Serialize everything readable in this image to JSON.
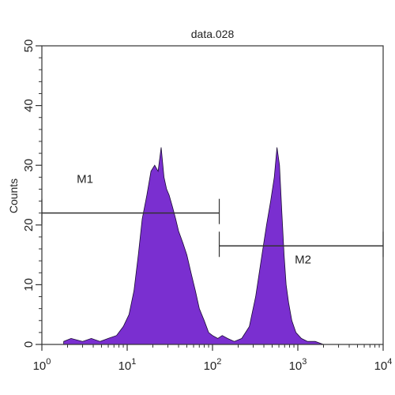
{
  "chart_data": {
    "type": "area",
    "title": "data.028",
    "xlabel": "",
    "ylabel": "Counts",
    "x_scale": "log",
    "xlim": [
      1,
      10000
    ],
    "ylim": [
      0,
      50
    ],
    "x_ticks": [
      {
        "value": 1,
        "base": "10",
        "exp": "0"
      },
      {
        "value": 10,
        "base": "10",
        "exp": "1"
      },
      {
        "value": 100,
        "base": "10",
        "exp": "2"
      },
      {
        "value": 1000,
        "base": "10",
        "exp": "3"
      },
      {
        "value": 10000,
        "base": "10",
        "exp": "4"
      }
    ],
    "y_ticks": [
      "0",
      "10",
      "20",
      "30",
      "40",
      "50"
    ],
    "y_tick_values": [
      0,
      10,
      20,
      30,
      40,
      50
    ],
    "grid": false,
    "fill_color": "#7a2fd0",
    "series": [
      {
        "x": [
          1.8,
          2.2,
          3.0,
          3.8,
          4.8,
          6.0,
          7.5,
          9.0,
          10.5,
          12.0,
          13.5,
          15.0,
          17.0,
          19.0,
          21.0,
          23.0,
          25.0,
          27.0,
          29.0,
          31.0,
          34.0,
          37.0,
          40.0,
          45.0,
          50.0,
          56.0,
          63.0,
          70.0,
          80.0,
          90.0,
          100.0,
          115.0,
          130.0,
          150.0,
          180.0,
          220.0,
          270.0,
          320.0,
          380.0,
          430.0,
          480.0,
          530.0,
          570.0,
          610.0,
          650.0,
          690.0,
          730.0,
          780.0,
          850.0,
          950.0,
          1100.0,
          1300.0,
          1600.0,
          2000.0
        ],
        "y": [
          0.5,
          1,
          0.5,
          1,
          0.5,
          1,
          1.5,
          3,
          5,
          9,
          15,
          21,
          25,
          29,
          30,
          29,
          33,
          28,
          26,
          25,
          23,
          21,
          19,
          17,
          15,
          12,
          9,
          6,
          4,
          2,
          1.5,
          1,
          1.5,
          1,
          0.5,
          1,
          3,
          8,
          15,
          20,
          24,
          28,
          33,
          30,
          22,
          15,
          10,
          7,
          4,
          2,
          1,
          0.5,
          0.5,
          0
        ]
      }
    ],
    "markers": [
      {
        "label": "M1",
        "x_start": 1,
        "x_end": 120,
        "y": 22
      },
      {
        "label": "M2",
        "x_start": 120,
        "x_end": 10000,
        "y": 16.5
      }
    ]
  }
}
